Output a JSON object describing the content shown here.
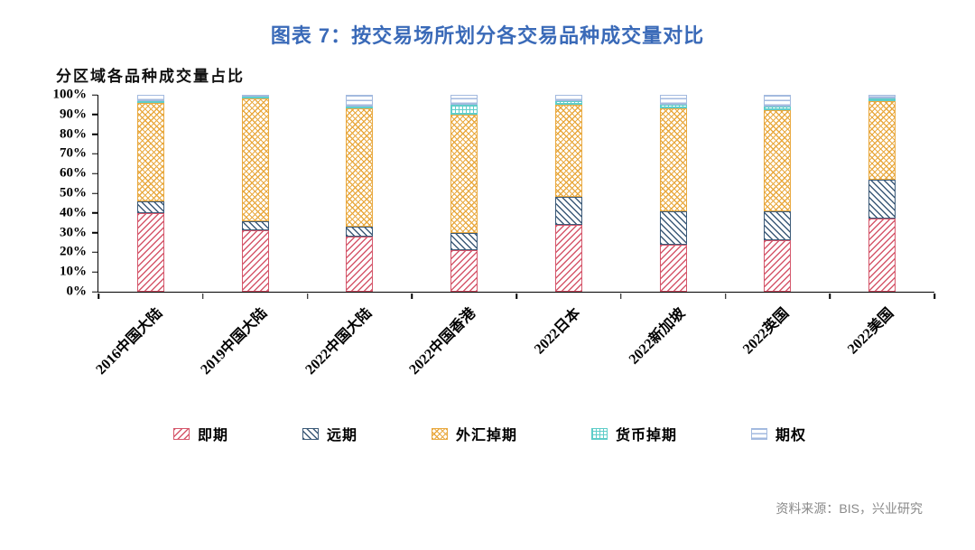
{
  "page": {
    "title": "图表 7：按交易场所划分各交易品种成交量对比",
    "source": "资料来源：BIS，兴业研究",
    "title_color": "#3a6ab8",
    "source_color": "#8a8a8a"
  },
  "chart_data": {
    "type": "bar",
    "stacking": "percent",
    "title": "图表 7：按交易场所划分各交易品种成交量对比",
    "axis_title": "分区域各品种成交量占比",
    "xlabel": "",
    "ylabel": "",
    "ylim": [
      0,
      100
    ],
    "grid": false,
    "legend_position": "bottom",
    "yticks": [
      "0%",
      "10%",
      "20%",
      "30%",
      "40%",
      "50%",
      "60%",
      "70%",
      "80%",
      "90%",
      "100%"
    ],
    "categories": [
      "2016中国大陆",
      "2019中国大陆",
      "2022中国大陆",
      "2022中国香港",
      "2022日本",
      "2022新加坡",
      "2022英国",
      "2022美国"
    ],
    "series": [
      {
        "key": "spot",
        "name": "即期",
        "pattern": "diag-up",
        "color": "#d5576b",
        "values": [
          40,
          31,
          28,
          21,
          34,
          24,
          26,
          37
        ]
      },
      {
        "key": "forward",
        "name": "远期",
        "pattern": "diag-down",
        "color": "#3c5a78",
        "values": [
          6,
          5,
          5,
          9,
          14,
          17,
          15,
          20
        ]
      },
      {
        "key": "fx-swap",
        "name": "外汇掉期",
        "pattern": "crosshatch",
        "color": "#e9a93f",
        "values": [
          50,
          62,
          60,
          60,
          47,
          52,
          51,
          40
        ]
      },
      {
        "key": "ccy-swap",
        "name": "货币掉期",
        "pattern": "grid",
        "color": "#5fcdc9",
        "values": [
          1,
          1,
          1,
          5,
          2,
          2,
          2,
          1
        ]
      },
      {
        "key": "option",
        "name": "期权",
        "pattern": "hlines",
        "color": "#a3badf",
        "values": [
          3,
          1,
          6,
          5,
          3,
          5,
          6,
          2
        ]
      }
    ]
  }
}
